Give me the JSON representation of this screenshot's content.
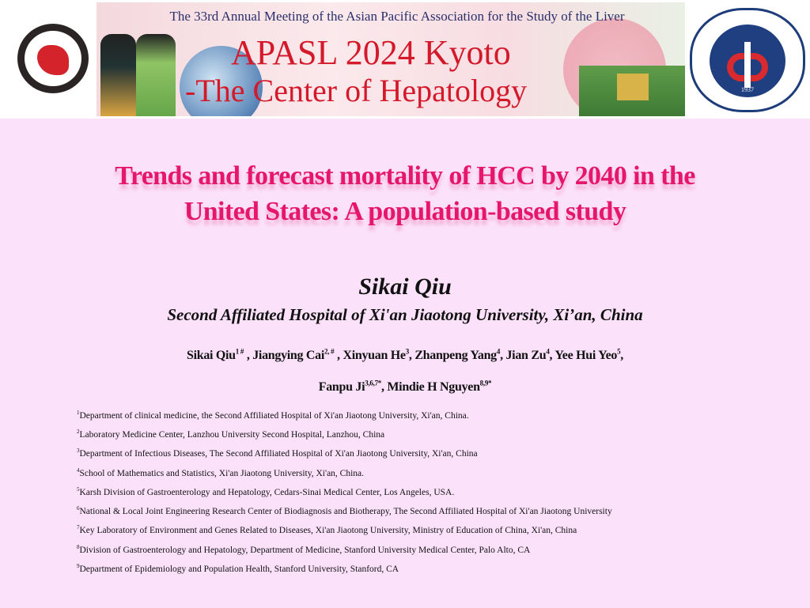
{
  "header": {
    "subtitle": "The 33rd Annual Meeting of the Asian Pacific Association for the Study of the Liver",
    "title_line1": "APASL 2024 Kyoto",
    "title_line2": "-The Center of Hepatology",
    "left_logo": "Asian Pacific Association for the Study of the Liver",
    "right_logo": "XI BEI HOSPITAL 1937 西安交通大学第二附属医院 西北医院",
    "right_logo_year": "1937"
  },
  "title": {
    "line1": "Trends and forecast mortality of HCC by 2040 in the",
    "line2": "United States: A population-based study"
  },
  "presenter": "Sikai Qiu",
  "presenter_affiliation": "Second Affiliated Hospital of Xi'an Jiaotong University, Xi’an, China",
  "authors": [
    {
      "name": "Sikai Qiu",
      "sup": "1 #",
      "sep": " , "
    },
    {
      "name": "Jiangying Cai",
      "sup": "2, #",
      "sep": " , "
    },
    {
      "name": "Xinyuan He",
      "sup": "3",
      "sep": ", "
    },
    {
      "name": "Zhanpeng Yang",
      "sup": "4",
      "sep": ", "
    },
    {
      "name": "Jian Zu",
      "sup": "4",
      "sep": ", "
    },
    {
      "name": "Yee Hui Yeo",
      "sup": "5",
      "sep": ","
    },
    {
      "name": "Fanpu Ji",
      "sup": "3,6,7*",
      "sep": ", "
    },
    {
      "name": "Mindie H Nguyen",
      "sup": "8,9*",
      "sep": ""
    }
  ],
  "affiliations": [
    {
      "n": "1",
      "text": "Department of clinical medicine, the Second Affiliated Hospital of Xi'an Jiaotong University, Xi'an, China."
    },
    {
      "n": "2",
      "text": "Laboratory Medicine Center, Lanzhou University Second Hospital, Lanzhou, China"
    },
    {
      "n": "3",
      "text": "Department of Infectious Diseases, The Second Affiliated Hospital of Xi'an Jiaotong University, Xi'an, China"
    },
    {
      "n": "4",
      "text": "School of Mathematics and Statistics, Xi'an Jiaotong University, Xi'an, China."
    },
    {
      "n": "5",
      "text": "Karsh Division of Gastroenterology and Hepatology, Cedars-Sinai Medical Center, Los Angeles, USA."
    },
    {
      "n": "6",
      "text": "National & Local Joint Engineering Research Center of Biodiagnosis and Biotherapy, The Second Affiliated Hospital of Xi'an Jiaotong University"
    },
    {
      "n": "7",
      "text": "Key Laboratory of Environment and Genes Related to Diseases, Xi'an Jiaotong University, Ministry of Education of China, Xi'an, China"
    },
    {
      "n": "8",
      "text": "Division of Gastroenterology and Hepatology, Department of Medicine, Stanford University Medical Center, Palo Alto, CA"
    },
    {
      "n": "9",
      "text": "Department of Epidemiology and Population Health, Stanford University, Stanford, CA"
    }
  ],
  "colors": {
    "background": "#fbe1fa",
    "title": "#e5166c",
    "banner_title": "#d4192b"
  }
}
